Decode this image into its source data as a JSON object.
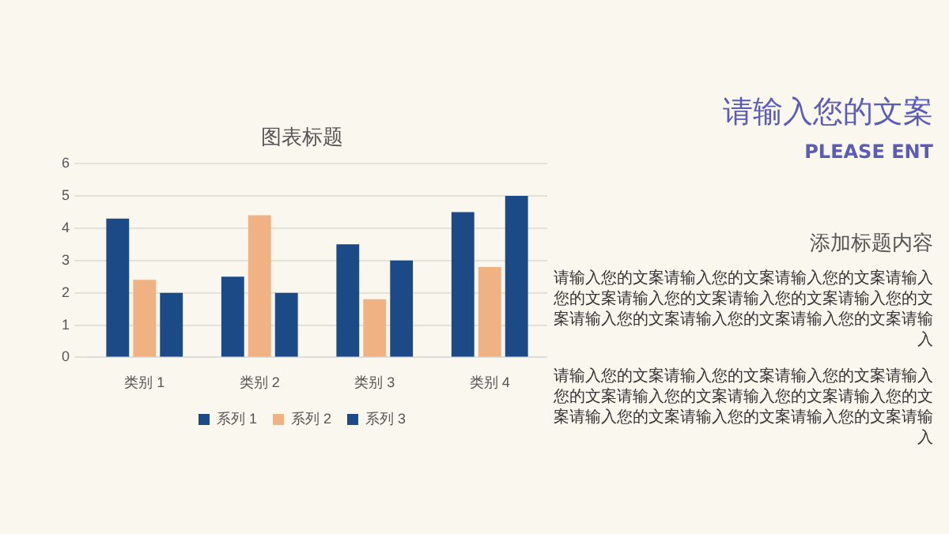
{
  "chart_data": {
    "type": "bar",
    "title": "图表标题",
    "categories": [
      "类别 1",
      "类别 2",
      "类别 3",
      "类别 4"
    ],
    "series": [
      {
        "name": "系列 1",
        "color": "#1c4a87",
        "values": [
          4.3,
          2.5,
          3.5,
          4.5
        ]
      },
      {
        "name": "系列 2",
        "color": "#f0b183",
        "values": [
          2.4,
          4.4,
          1.8,
          2.8
        ]
      },
      {
        "name": "系列 3",
        "color": "#1c4a87",
        "values": [
          2,
          2,
          3,
          5
        ]
      }
    ],
    "ylim": [
      0,
      6
    ],
    "yticks": [
      0,
      1,
      2,
      3,
      4,
      5,
      6
    ],
    "grid": "y",
    "legend": "bottom",
    "annotations": [
      "请输入您的文案",
      "PLEASE ENT",
      "添加标题内容",
      "请输入您的文案请输入您的文案请输入您的文案请输入您的文案请输入您的文案请输入您的文案请输入您的文案请输入您的文案请输入您的文案请输入您的文案请输入",
      "请输入您的文案请输入您的文案请输入您的文案请输入您的文案请输入您的文案请输入您的文案请输入您的文案请输入您的文案请输入您的文案请输入您的文案请输入"
    ]
  }
}
